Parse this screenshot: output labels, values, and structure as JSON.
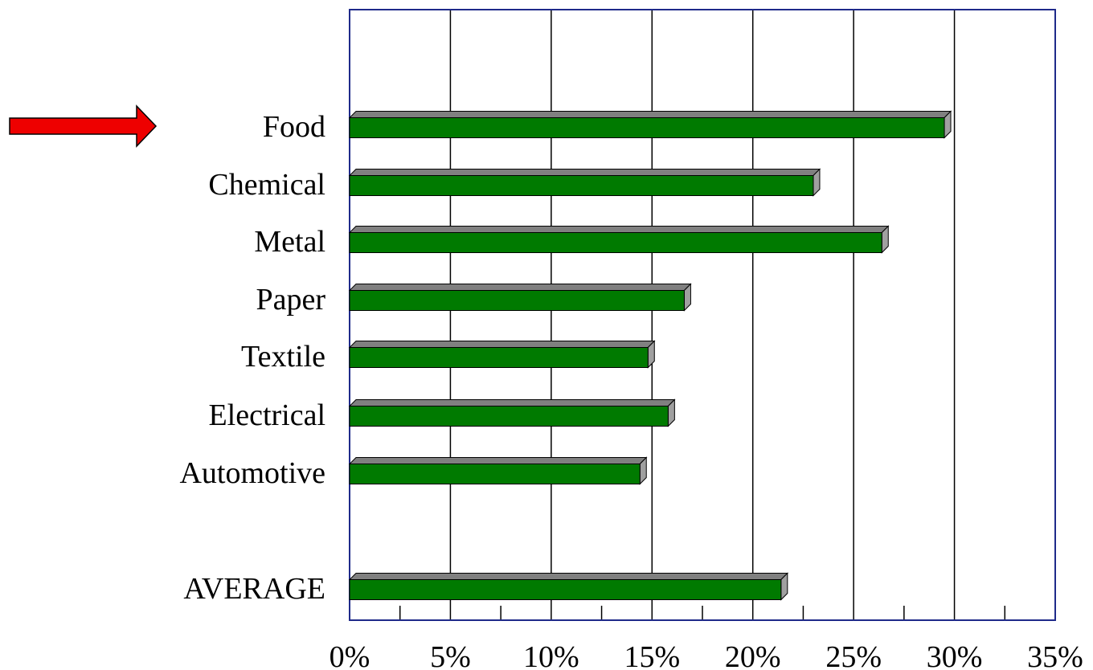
{
  "chart_data": {
    "type": "bar",
    "orientation": "horizontal",
    "categories": [
      "Food",
      "Chemical",
      "Metal",
      "Paper",
      "Textile",
      "Electrical",
      "Automotive",
      "AVERAGE"
    ],
    "values": [
      29.5,
      23.0,
      26.4,
      16.6,
      14.8,
      15.8,
      14.4,
      21.4
    ],
    "xlim": [
      0,
      35
    ],
    "x_ticks": [
      0,
      5,
      10,
      15,
      20,
      25,
      30,
      35
    ],
    "x_tick_labels": [
      "0%",
      "5%",
      "10%",
      "15%",
      "20%",
      "25%",
      "30%",
      "35%"
    ],
    "grid": true,
    "title": "",
    "xlabel": "",
    "ylabel": "",
    "highlighted_category": "Food",
    "colors": {
      "bar_face": "#007A00",
      "bar_top": "#808080",
      "bar_side": "#A0A0A0",
      "frame": "#1F2A8A",
      "grid": "#000000",
      "arrow": "#EE0000"
    }
  }
}
